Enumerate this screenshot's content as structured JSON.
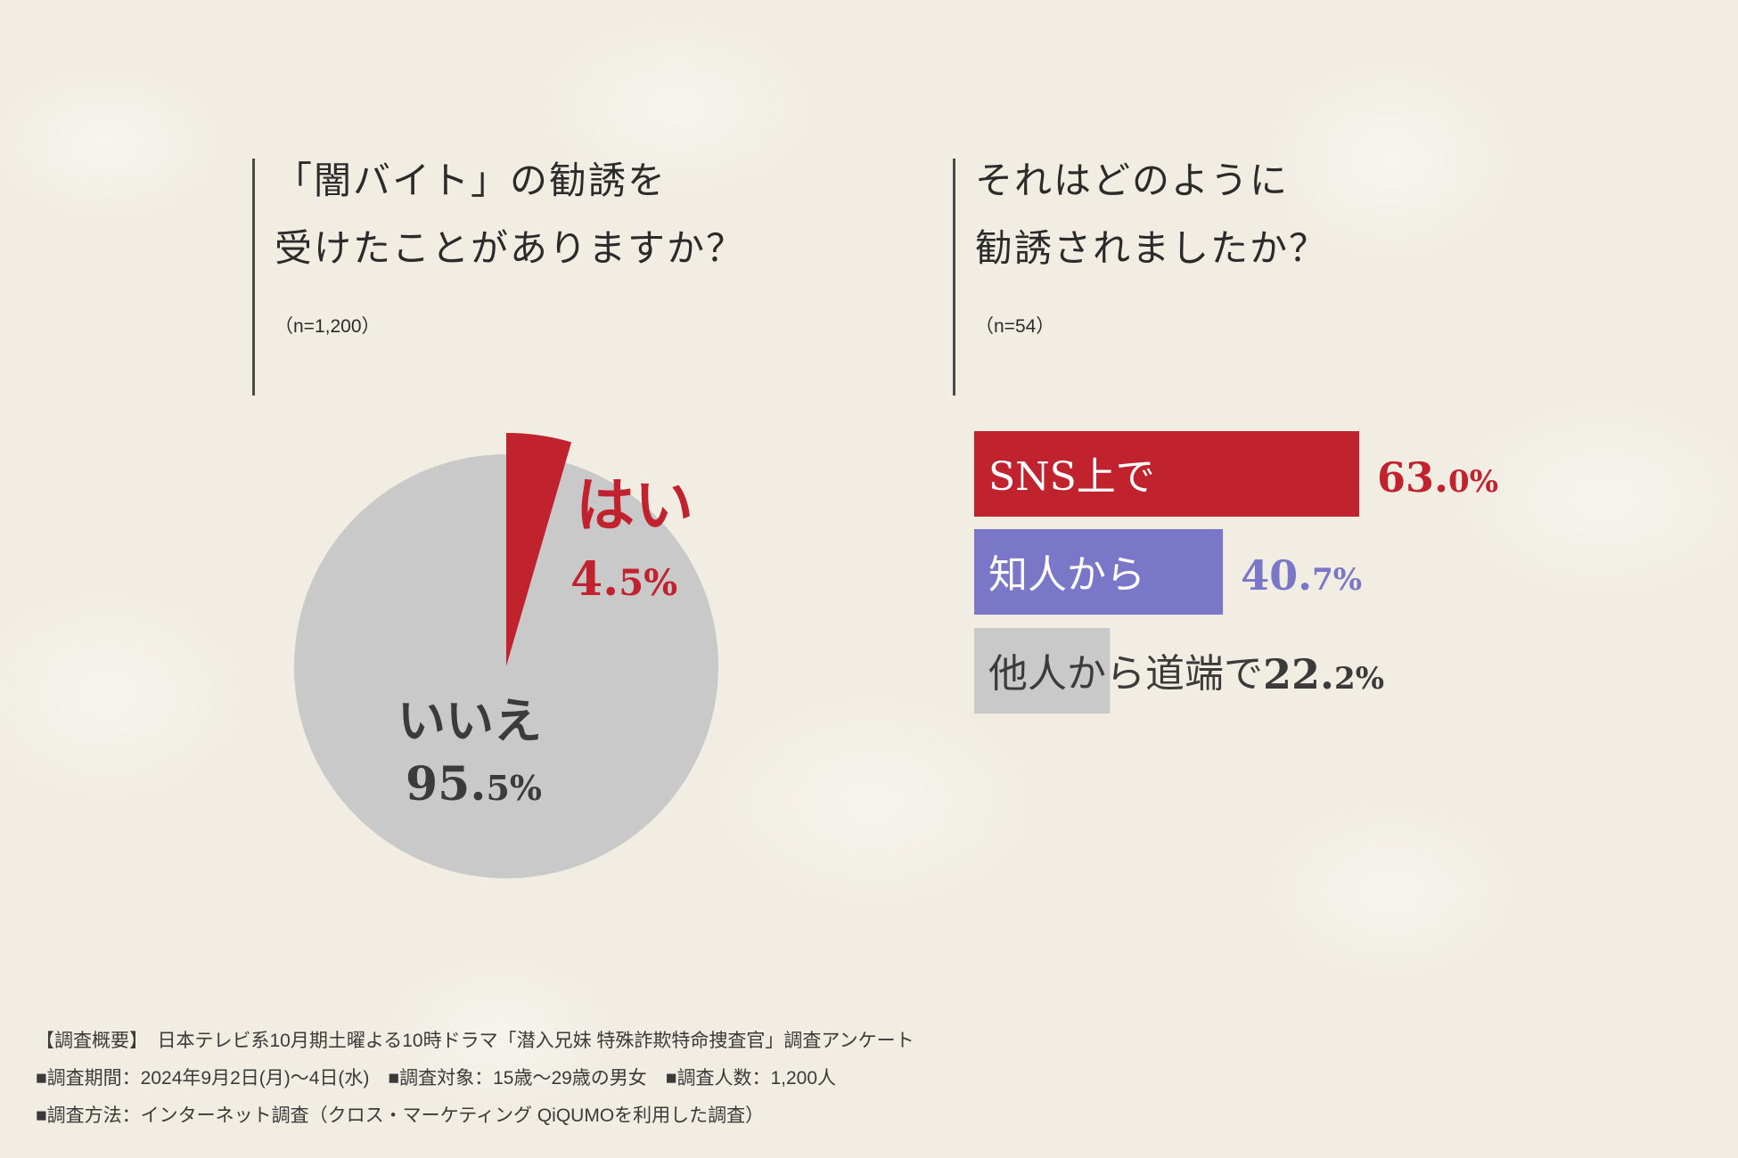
{
  "left_question": {
    "line1": "「闇バイト」の勧誘を",
    "line2": "受けたことがありますか？",
    "n": "（n=1,200）"
  },
  "right_question": {
    "line1": "それはどのように",
    "line2": "勧誘されましたか？",
    "n": "（n=54）"
  },
  "colors": {
    "red": "#c0232e",
    "purple": "#7a77c8",
    "gray": "#c9c9c9",
    "text_dark": "#3b3b3b"
  },
  "chart_data": [
    {
      "type": "pie",
      "slices": [
        {
          "label": "はい",
          "value": 4.5,
          "value_big": "4.",
          "value_small": "5%",
          "color": "#c0232e"
        },
        {
          "label": "いいえ",
          "value": 95.5,
          "value_big": "95.",
          "value_small": "5%",
          "color": "#c9c9c9"
        }
      ]
    },
    {
      "type": "bar",
      "orientation": "horizontal",
      "categories": [
        "SNS上で",
        "知人から",
        "他人から道端で"
      ],
      "values": [
        63.0,
        40.7,
        22.2
      ],
      "value_big": [
        "63.",
        "40.",
        "22."
      ],
      "value_small": [
        "0%",
        "7%",
        "2%"
      ],
      "colors": [
        "#c0232e",
        "#7a77c8",
        "#c9c9c9"
      ],
      "xlim": [
        0,
        100
      ]
    }
  ],
  "footer": {
    "line1": "【調査概要】　日本テレビ系10月期土曜よる10時ドラマ「潜入兄妹 特殊詐欺特命捜査官」調査アンケート",
    "line2": "■調査期間：2024年9月2日(月)～4日(水)　■調査対象：15歳～29歳の男女　■調査人数：1,200人",
    "line3": "■調査方法：インターネット調査（クロス・マーケティング QiQUMOを利用した調査）"
  }
}
